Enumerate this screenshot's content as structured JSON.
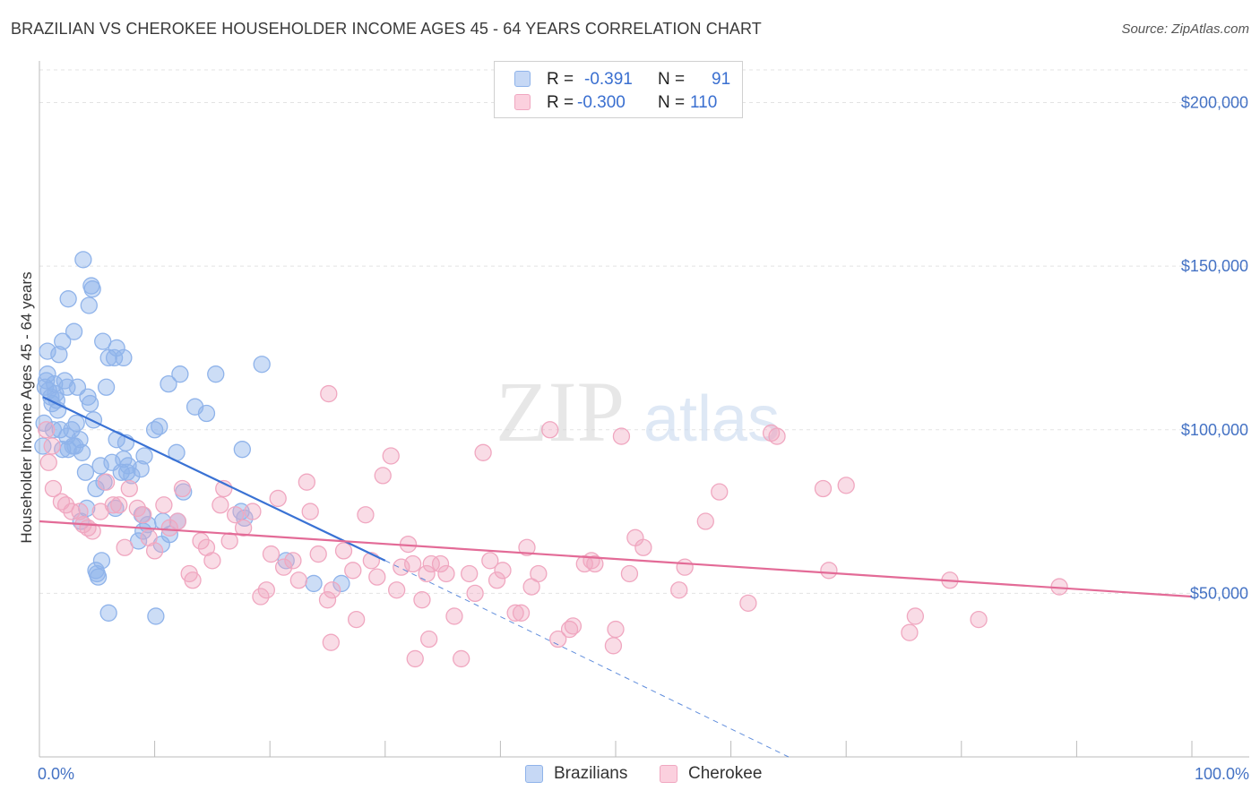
{
  "title": "BRAZILIAN VS CHEROKEE HOUSEHOLDER INCOME AGES 45 - 64 YEARS CORRELATION CHART",
  "source": "Source: ZipAtlas.com",
  "watermark": {
    "zip": "ZIP",
    "atlas": "atlas"
  },
  "legend_top": {
    "rows": [
      {
        "r_label": "R =",
        "r_value": "-0.391",
        "n_label": "N =",
        "n_value": "91",
        "color": "#8fb3ea",
        "fill": "#c6d8f5"
      },
      {
        "r_label": "R =",
        "r_value": "-0.300",
        "n_label": "N =",
        "n_value": "110",
        "color": "#f0a7c0",
        "fill": "#fbd0de"
      }
    ]
  },
  "legend_bottom": [
    {
      "name": "Brazilians",
      "color": "#8fb3ea",
      "fill": "#c6d8f5"
    },
    {
      "name": "Cherokee",
      "color": "#f0a7c0",
      "fill": "#fbd0de"
    }
  ],
  "chart_data": {
    "type": "scatter",
    "ylabel": "Householder Income Ages 45 - 64 years",
    "xlim": [
      0,
      100
    ],
    "ylim": [
      0,
      210000
    ],
    "x_tick_labels": [
      {
        "value": 0,
        "label": "0.0%"
      },
      {
        "value": 100,
        "label": "100.0%"
      }
    ],
    "y_tick_labels": [
      {
        "value": 50000,
        "label": "$50,000"
      },
      {
        "value": 100000,
        "label": "$100,000"
      },
      {
        "value": 150000,
        "label": "$150,000"
      },
      {
        "value": 200000,
        "label": "$200,000"
      }
    ],
    "grid": true,
    "series": [
      {
        "name": "Brazilians",
        "color": "#3a72d4",
        "marker_fill": "rgba(143,179,234,0.45)",
        "marker_stroke": "#8fb3ea",
        "trend": {
          "x0": 0.3,
          "y0": 110000,
          "x1": 30,
          "y1": 60000,
          "dash_to_x": 65,
          "dash_to_y": 0
        },
        "points": [
          [
            0.5,
            113000
          ],
          [
            0.6,
            115000
          ],
          [
            0.7,
            117000
          ],
          [
            0.8,
            112000
          ],
          [
            1.0,
            110000
          ],
          [
            1.1,
            108000
          ],
          [
            1.4,
            111000
          ],
          [
            1.5,
            109000
          ],
          [
            1.3,
            114000
          ],
          [
            0.4,
            102000
          ],
          [
            0.7,
            124000
          ],
          [
            1.7,
            123000
          ],
          [
            2.0,
            127000
          ],
          [
            2.5,
            140000
          ],
          [
            3.0,
            130000
          ],
          [
            3.8,
            152000
          ],
          [
            4.3,
            138000
          ],
          [
            4.5,
            144000
          ],
          [
            4.6,
            143000
          ],
          [
            5.5,
            127000
          ],
          [
            6.0,
            122000
          ],
          [
            6.5,
            122000
          ],
          [
            6.7,
            125000
          ],
          [
            7.3,
            122000
          ],
          [
            5.8,
            113000
          ],
          [
            2.2,
            115000
          ],
          [
            2.4,
            113000
          ],
          [
            1.6,
            106000
          ],
          [
            3.3,
            113000
          ],
          [
            4.2,
            110000
          ],
          [
            4.4,
            108000
          ],
          [
            4.7,
            103000
          ],
          [
            3.2,
            102000
          ],
          [
            2.8,
            100000
          ],
          [
            1.8,
            100000
          ],
          [
            2.4,
            98000
          ],
          [
            3.5,
            97000
          ],
          [
            2.0,
            94000
          ],
          [
            2.5,
            94000
          ],
          [
            3.1,
            95000
          ],
          [
            3.7,
            93000
          ],
          [
            2.9,
            95000
          ],
          [
            5.3,
            89000
          ],
          [
            6.3,
            90000
          ],
          [
            6.7,
            97000
          ],
          [
            7.5,
            96000
          ],
          [
            7.7,
            89000
          ],
          [
            7.3,
            91000
          ],
          [
            8.8,
            88000
          ],
          [
            9.1,
            92000
          ],
          [
            10.0,
            100000
          ],
          [
            10.4,
            101000
          ],
          [
            11.9,
            93000
          ],
          [
            11.2,
            114000
          ],
          [
            12.2,
            117000
          ],
          [
            13.5,
            107000
          ],
          [
            14.5,
            105000
          ],
          [
            15.3,
            117000
          ],
          [
            17.6,
            94000
          ],
          [
            19.3,
            120000
          ],
          [
            4.9,
            82000
          ],
          [
            5.6,
            84000
          ],
          [
            7.1,
            87000
          ],
          [
            7.6,
            87000
          ],
          [
            4.0,
            87000
          ],
          [
            8.0,
            86000
          ],
          [
            6.6,
            76000
          ],
          [
            12.5,
            81000
          ],
          [
            17.5,
            75000
          ],
          [
            17.8,
            73000
          ],
          [
            8.9,
            74000
          ],
          [
            10.7,
            72000
          ],
          [
            11.3,
            68000
          ],
          [
            12.0,
            72000
          ],
          [
            9.4,
            71000
          ],
          [
            9.0,
            69000
          ],
          [
            8.6,
            66000
          ],
          [
            10.6,
            65000
          ],
          [
            3.6,
            72000
          ],
          [
            4.1,
            76000
          ],
          [
            5.0,
            56000
          ],
          [
            5.1,
            55000
          ],
          [
            5.4,
            60000
          ],
          [
            4.9,
            57000
          ],
          [
            21.4,
            60000
          ],
          [
            23.8,
            53000
          ],
          [
            26.2,
            53000
          ],
          [
            6.0,
            44000
          ],
          [
            10.1,
            43000
          ],
          [
            0.3,
            95000
          ],
          [
            1.2,
            100000
          ]
        ]
      },
      {
        "name": "Cherokee",
        "color": "#e36b97",
        "marker_fill": "rgba(240,167,192,0.4)",
        "marker_stroke": "#f0a7c0",
        "trend": {
          "x0": 0,
          "y0": 72000,
          "x1": 100,
          "y1": 49000
        },
        "points": [
          [
            0.6,
            100000
          ],
          [
            0.8,
            90000
          ],
          [
            1.2,
            82000
          ],
          [
            1.9,
            78000
          ],
          [
            2.3,
            77000
          ],
          [
            2.8,
            75000
          ],
          [
            3.5,
            75000
          ],
          [
            3.8,
            71000
          ],
          [
            4.2,
            70000
          ],
          [
            4.6,
            69000
          ],
          [
            5.3,
            75000
          ],
          [
            5.8,
            84000
          ],
          [
            6.4,
            77000
          ],
          [
            6.9,
            77000
          ],
          [
            7.4,
            64000
          ],
          [
            7.8,
            82000
          ],
          [
            8.5,
            76000
          ],
          [
            9.0,
            74000
          ],
          [
            9.5,
            67000
          ],
          [
            10.0,
            63000
          ],
          [
            10.8,
            77000
          ],
          [
            11.3,
            70000
          ],
          [
            12.0,
            72000
          ],
          [
            12.4,
            82000
          ],
          [
            13.0,
            56000
          ],
          [
            13.3,
            54000
          ],
          [
            14.0,
            66000
          ],
          [
            14.5,
            64000
          ],
          [
            15.0,
            60000
          ],
          [
            15.7,
            77000
          ],
          [
            16.0,
            82000
          ],
          [
            16.5,
            66000
          ],
          [
            17.0,
            74000
          ],
          [
            17.7,
            70000
          ],
          [
            18.5,
            75000
          ],
          [
            19.2,
            49000
          ],
          [
            19.7,
            51000
          ],
          [
            20.1,
            62000
          ],
          [
            20.7,
            79000
          ],
          [
            21.2,
            58000
          ],
          [
            22.0,
            60000
          ],
          [
            22.5,
            54000
          ],
          [
            23.2,
            84000
          ],
          [
            23.5,
            75000
          ],
          [
            24.2,
            62000
          ],
          [
            25.0,
            48000
          ],
          [
            25.4,
            51000
          ],
          [
            25.1,
            111000
          ],
          [
            26.4,
            63000
          ],
          [
            27.2,
            57000
          ],
          [
            27.5,
            42000
          ],
          [
            28.3,
            74000
          ],
          [
            28.8,
            60000
          ],
          [
            29.3,
            55000
          ],
          [
            29.8,
            86000
          ],
          [
            30.5,
            92000
          ],
          [
            31.0,
            51000
          ],
          [
            31.4,
            58000
          ],
          [
            32.0,
            65000
          ],
          [
            32.6,
            30000
          ],
          [
            33.2,
            48000
          ],
          [
            33.6,
            56000
          ],
          [
            34.0,
            59000
          ],
          [
            34.8,
            59000
          ],
          [
            35.3,
            56000
          ],
          [
            36.0,
            43000
          ],
          [
            36.6,
            30000
          ],
          [
            37.3,
            56000
          ],
          [
            37.8,
            50000
          ],
          [
            38.5,
            93000
          ],
          [
            39.1,
            60000
          ],
          [
            39.7,
            54000
          ],
          [
            40.2,
            57000
          ],
          [
            41.3,
            44000
          ],
          [
            41.8,
            44000
          ],
          [
            42.3,
            64000
          ],
          [
            42.7,
            52000
          ],
          [
            43.3,
            56000
          ],
          [
            44.3,
            100000
          ],
          [
            45.0,
            36000
          ],
          [
            46.0,
            39000
          ],
          [
            46.3,
            40000
          ],
          [
            47.3,
            59000
          ],
          [
            47.9,
            60000
          ],
          [
            48.2,
            59000
          ],
          [
            50.0,
            39000
          ],
          [
            50.5,
            98000
          ],
          [
            51.2,
            56000
          ],
          [
            51.7,
            67000
          ],
          [
            52.4,
            64000
          ],
          [
            55.5,
            51000
          ],
          [
            56.0,
            58000
          ],
          [
            57.8,
            72000
          ],
          [
            59.0,
            81000
          ],
          [
            61.5,
            47000
          ],
          [
            63.5,
            99000
          ],
          [
            64.0,
            98000
          ],
          [
            68.0,
            82000
          ],
          [
            68.5,
            57000
          ],
          [
            70.0,
            83000
          ],
          [
            75.5,
            38000
          ],
          [
            76.0,
            43000
          ],
          [
            79.0,
            54000
          ],
          [
            81.5,
            42000
          ],
          [
            88.5,
            52000
          ],
          [
            1.1,
            95000
          ],
          [
            49.8,
            34000
          ],
          [
            32.4,
            59000
          ],
          [
            33.8,
            36000
          ],
          [
            25.3,
            35000
          ]
        ]
      }
    ]
  }
}
